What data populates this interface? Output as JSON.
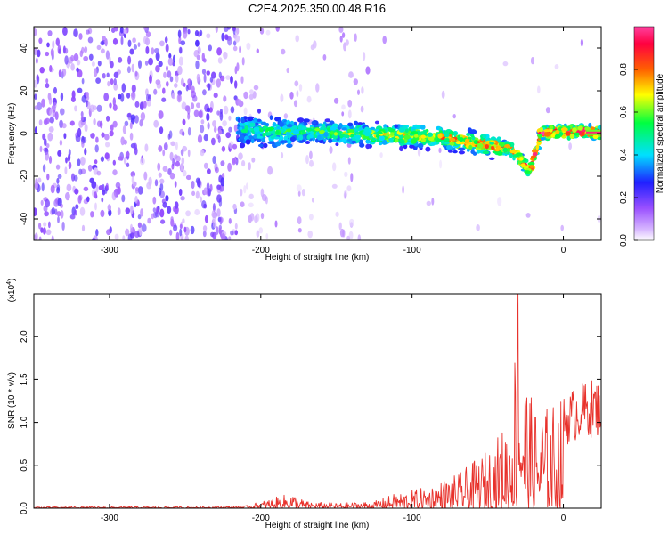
{
  "page_title": "C2E4.2025.350.00.48.R16",
  "colors": {
    "snr_line": "#e8322c",
    "ridge_purple": "#7a2cf0",
    "axis": "#000000"
  },
  "chart_data": [
    {
      "type": "heatmap",
      "title": "",
      "xlabel": "Height of straight line (km)",
      "ylabel": "Frequency (Hz)",
      "xlim": [
        -350,
        25
      ],
      "ylim": [
        -50,
        50
      ],
      "xticks": [
        {
          "value": -300,
          "label": "-300"
        },
        {
          "value": -200,
          "label": "-200"
        },
        {
          "value": -100,
          "label": "-100"
        },
        {
          "value": 0,
          "label": "0"
        }
      ],
      "yticks": [
        {
          "value": -40,
          "label": "-40"
        },
        {
          "value": -20,
          "label": "-20"
        },
        {
          "value": 0,
          "label": "0"
        },
        {
          "value": 20,
          "label": "20"
        },
        {
          "value": 40,
          "label": "40"
        }
      ],
      "colorbar": {
        "label": "Normalized spectral amplitude",
        "range": [
          0,
          1
        ],
        "ticks": [
          {
            "value": 0.0,
            "label": "0.0"
          },
          {
            "value": 0.2,
            "label": "0.2"
          },
          {
            "value": 0.4,
            "label": "0.4"
          },
          {
            "value": 0.6,
            "label": "0.6"
          },
          {
            "value": 0.8,
            "label": "0.8"
          }
        ],
        "colormap": [
          "#ffffff",
          "#9a50ff",
          "#2020ff",
          "#00e0ff",
          "#00ff40",
          "#ffff00",
          "#ff6000",
          "#ff0040",
          "#ff40a0"
        ]
      },
      "ridge": [
        {
          "x": -215,
          "y": 2
        },
        {
          "x": -200,
          "y": 1
        },
        {
          "x": -180,
          "y": 1
        },
        {
          "x": -160,
          "y": 1
        },
        {
          "x": -140,
          "y": 0
        },
        {
          "x": -120,
          "y": -1
        },
        {
          "x": -100,
          "y": -1
        },
        {
          "x": -80,
          "y": -2
        },
        {
          "x": -60,
          "y": -4
        },
        {
          "x": -45,
          "y": -6
        },
        {
          "x": -35,
          "y": -7
        },
        {
          "x": -28,
          "y": -12
        },
        {
          "x": -22,
          "y": -18
        },
        {
          "x": -15,
          "y": 0
        },
        {
          "x": 0,
          "y": 1
        },
        {
          "x": 15,
          "y": 1
        },
        {
          "x": 25,
          "y": 0
        }
      ]
    },
    {
      "type": "line",
      "title": "",
      "xlabel": "Height of straight line (km)",
      "ylabel": "SNR (10 * v/v)",
      "y_exponent_label": "(x10",
      "y_exponent_sup": "4",
      "y_exponent_close": ")",
      "xlim": [
        -350,
        25
      ],
      "ylim": [
        0,
        2.5
      ],
      "xticks": [
        {
          "value": -300,
          "label": "-300"
        },
        {
          "value": -200,
          "label": "-200"
        },
        {
          "value": -100,
          "label": "-100"
        },
        {
          "value": 0,
          "label": "0"
        }
      ],
      "yticks": [
        {
          "value": 0.0,
          "label": "0.0"
        },
        {
          "value": 0.5,
          "label": "0.5"
        },
        {
          "value": 1.0,
          "label": "1.0"
        },
        {
          "value": 1.5,
          "label": "1.5"
        },
        {
          "value": 2.0,
          "label": "2.0"
        }
      ],
      "series": [
        {
          "color": "#e8322c",
          "envelope": [
            {
              "x": -350,
              "y": 0.02
            },
            {
              "x": -250,
              "y": 0.02
            },
            {
              "x": -210,
              "y": 0.03
            },
            {
              "x": -180,
              "y": 0.18
            },
            {
              "x": -170,
              "y": 0.08
            },
            {
              "x": -150,
              "y": 0.06
            },
            {
              "x": -125,
              "y": 0.08
            },
            {
              "x": -110,
              "y": 0.18
            },
            {
              "x": -90,
              "y": 0.25
            },
            {
              "x": -70,
              "y": 0.4
            },
            {
              "x": -55,
              "y": 0.6
            },
            {
              "x": -45,
              "y": 0.8
            },
            {
              "x": -35,
              "y": 1.1
            },
            {
              "x": -30,
              "y": 2.5
            },
            {
              "x": -25,
              "y": 1.6
            },
            {
              "x": -20,
              "y": 1.2
            },
            {
              "x": -10,
              "y": 1.2
            },
            {
              "x": 0,
              "y": 1.3
            },
            {
              "x": 10,
              "y": 1.45
            },
            {
              "x": 18,
              "y": 1.5
            },
            {
              "x": 25,
              "y": 1.5
            }
          ]
        }
      ]
    }
  ]
}
